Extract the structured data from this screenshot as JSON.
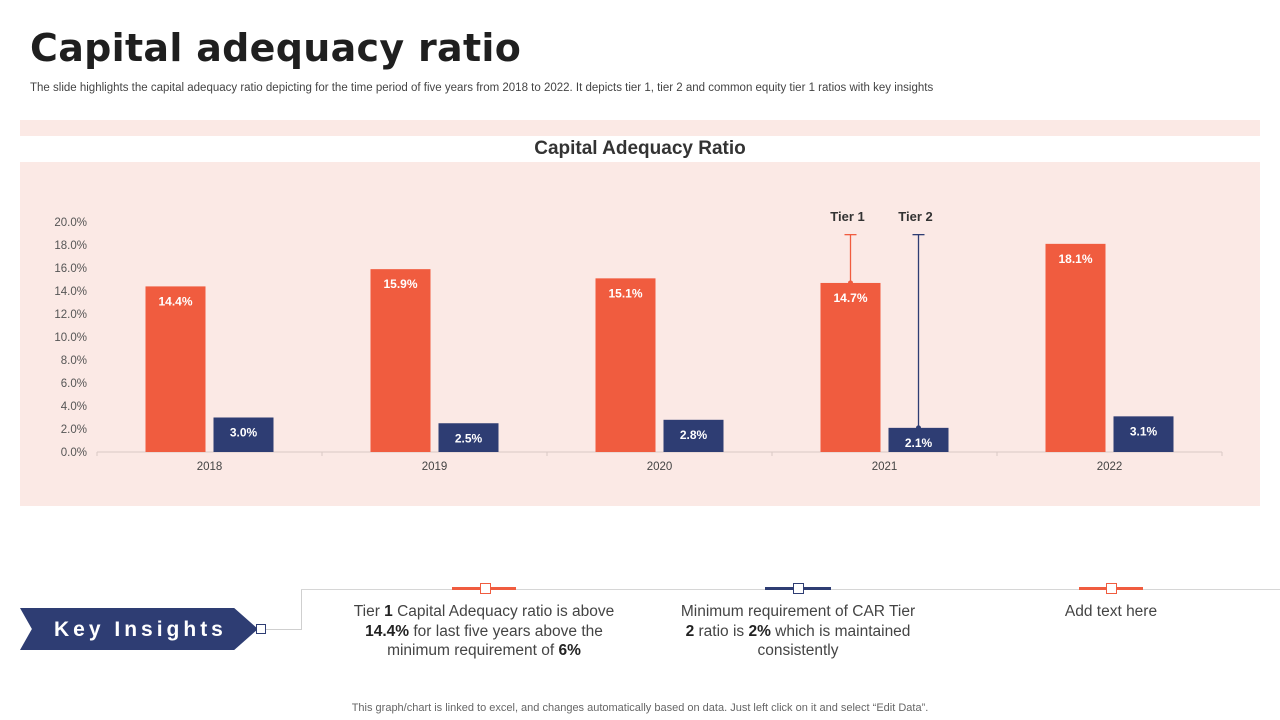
{
  "page": {
    "title": "Capital adequacy ratio",
    "subtitle": "The slide highlights the capital adequacy ratio depicting for the time period of five years from 2018 to 2022. It depicts tier 1, tier 2 and common equity tier 1 ratios with key insights",
    "footnote": "This graph/chart is linked to excel, and changes automatically based on data. Just left click on it and select “Edit Data”."
  },
  "colors": {
    "tier1": "#f05c3f",
    "tier2": "#2e3d73",
    "panel": "#fbe9e5"
  },
  "chart_data": {
    "type": "bar",
    "title": "Capital Adequacy Ratio",
    "categories": [
      "2018",
      "2019",
      "2020",
      "2021",
      "2022"
    ],
    "series": [
      {
        "name": "Tier 1",
        "values": [
          14.4,
          15.9,
          15.1,
          14.7,
          18.1
        ],
        "labels": [
          "14.4%",
          "15.9%",
          "15.1%",
          "14.7%",
          "18.1%"
        ]
      },
      {
        "name": "Tier 2",
        "values": [
          3.0,
          2.5,
          2.8,
          2.1,
          3.1
        ],
        "labels": [
          "3.0%",
          "2.5%",
          "2.8%",
          "2.1%",
          "3.1%"
        ]
      }
    ],
    "ylim": [
      0,
      20
    ],
    "yticks": [
      "0.0%",
      "2.0%",
      "4.0%",
      "6.0%",
      "8.0%",
      "10.0%",
      "12.0%",
      "14.0%",
      "16.0%",
      "18.0%",
      "20.0%"
    ],
    "annotations": [
      {
        "text": "Tier 1",
        "category": "2021",
        "series": "Tier 1"
      },
      {
        "text": "Tier 2",
        "category": "2021",
        "series": "Tier 2"
      }
    ],
    "xlabel": "",
    "ylabel": ""
  },
  "insights": {
    "label": "Key Insights",
    "items": [
      {
        "pre": "Tier ",
        "b1": "1",
        "mid": " Capital Adequacy ratio is above ",
        "b2": "14.4%",
        "mid2": " for last five years above the minimum requirement of ",
        "b3": "6%",
        "post": "",
        "color": "#f05c3f"
      },
      {
        "pre": "Minimum requirement of CAR Tier ",
        "b1": "2",
        "mid": " ratio is ",
        "b2": "2%",
        "mid2": " which is maintained consistently",
        "b3": "",
        "post": "",
        "color": "#2e3d73"
      },
      {
        "pre": "Add text here",
        "b1": "",
        "mid": "",
        "b2": "",
        "mid2": "",
        "b3": "",
        "post": "",
        "color": "#f05c3f"
      }
    ]
  }
}
